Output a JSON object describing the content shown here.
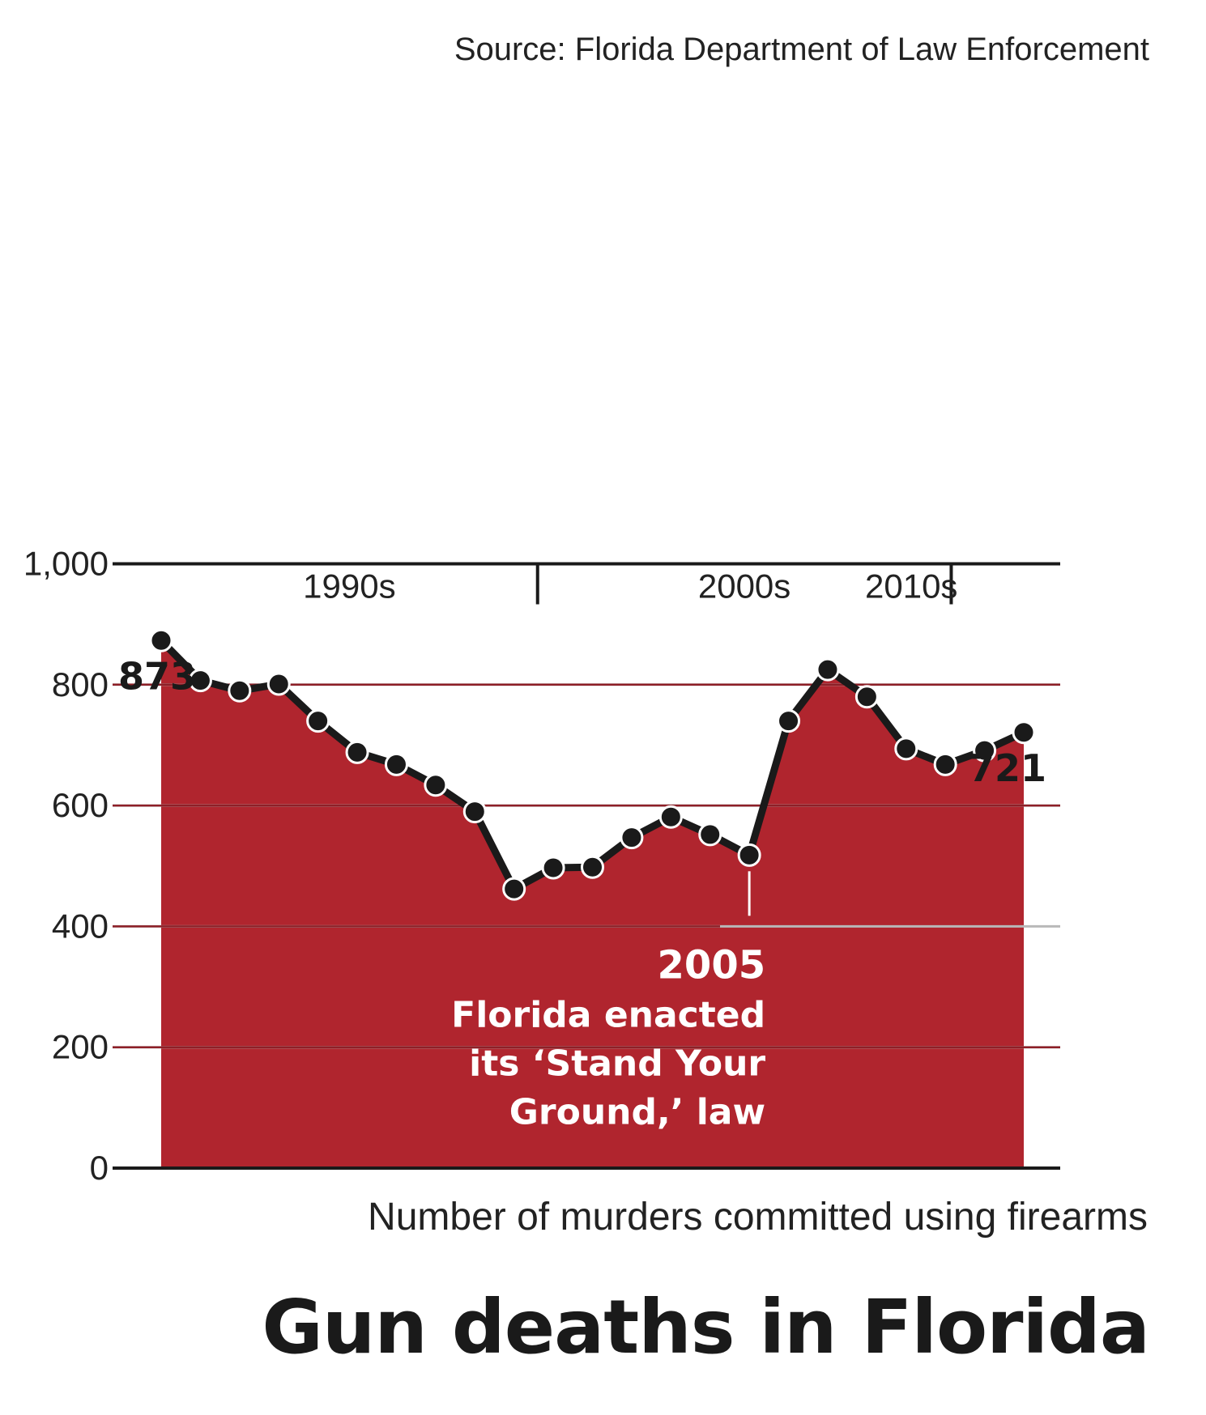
{
  "chart_data": {
    "type": "area",
    "title": "Gun deaths in Florida",
    "subtitle": "Number of murders committed using firearms",
    "source": "Source: Florida Department of Law Enforcement",
    "x": [
      1990,
      1991,
      1992,
      1993,
      1994,
      1995,
      1996,
      1997,
      1998,
      1999,
      2000,
      2001,
      2002,
      2003,
      2004,
      2005,
      2006,
      2007,
      2008,
      2009,
      2010,
      2011,
      2012
    ],
    "values": [
      873,
      807,
      790,
      801,
      740,
      688,
      668,
      634,
      590,
      462,
      497,
      498,
      547,
      581,
      552,
      518,
      740,
      825,
      780,
      694,
      668,
      691,
      721
    ],
    "ylim": [
      0,
      1000
    ],
    "yticks": [
      "0",
      "200",
      "400",
      "600",
      "800",
      "1,000"
    ],
    "ytick_values": [
      0,
      200,
      400,
      600,
      800,
      1000
    ],
    "eras": [
      "1990s",
      "2000s",
      "2010s"
    ],
    "labeled_points": {
      "first": "873",
      "last": "721"
    },
    "annotation": {
      "year": "2005",
      "lines": [
        "Florida enacted",
        "its ‘Stand Your",
        "Ground,’ law"
      ],
      "at_x": 2005
    },
    "colors": {
      "area": "#b0252e",
      "line": "#1a1a1a",
      "grid": "#b8b8b8",
      "axis": "#1a1a1a"
    },
    "orientation": "rotated 180 degrees",
    "grid": true
  }
}
